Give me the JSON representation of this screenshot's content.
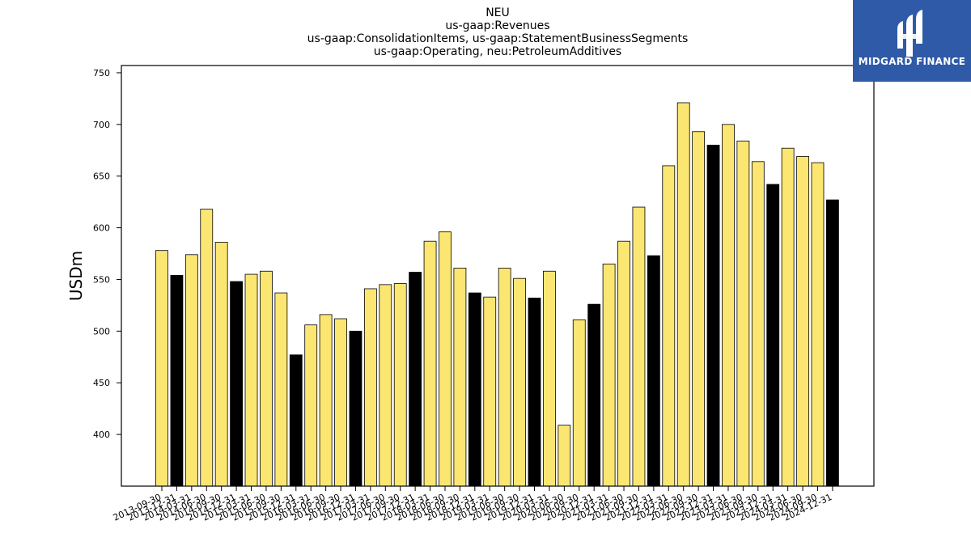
{
  "chart_data": {
    "type": "bar",
    "title_lines": [
      "NEU",
      "us-gaap:Revenues",
      "us-gaap:ConsolidationItems, us-gaap:StatementBusinessSegments",
      "us-gaap:Operating, neu:PetroleumAdditives"
    ],
    "ylabel": "USDm",
    "ylim": [
      350,
      757
    ],
    "yticks": [
      400,
      450,
      500,
      550,
      600,
      650,
      700,
      750
    ],
    "colors": {
      "quarter": "#fbe672",
      "year_end": "#000000",
      "edge": "#000000"
    },
    "categories": [
      "2013-09-30",
      "2013-12-31",
      "2014-03-31",
      "2014-06-30",
      "2014-09-30",
      "2014-12-31",
      "2015-03-31",
      "2015-06-30",
      "2015-09-30",
      "2015-12-31",
      "2016-03-31",
      "2016-06-30",
      "2016-09-30",
      "2016-12-31",
      "2017-03-31",
      "2017-06-30",
      "2017-09-30",
      "2017-12-31",
      "2018-03-31",
      "2018-06-30",
      "2018-09-30",
      "2018-12-31",
      "2019-03-31",
      "2019-06-30",
      "2019-09-30",
      "2019-12-31",
      "2020-03-31",
      "2020-06-30",
      "2020-09-30",
      "2020-12-31",
      "2021-03-31",
      "2021-06-30",
      "2021-09-30",
      "2021-12-31",
      "2022-03-31",
      "2022-06-30",
      "2022-09-30",
      "2022-12-31",
      "2023-03-31",
      "2023-06-30",
      "2023-09-30",
      "2023-12-31",
      "2024-03-31",
      "2024-06-30",
      "2024-09-30",
      "2024-12-31"
    ],
    "values": [
      578,
      554,
      574,
      618,
      586,
      548,
      555,
      558,
      537,
      477,
      506,
      516,
      512,
      500,
      541,
      545,
      546,
      557,
      587,
      596,
      561,
      537,
      533,
      561,
      551,
      532,
      558,
      409,
      511,
      526,
      565,
      587,
      620,
      573,
      660,
      721,
      693,
      680,
      700,
      684,
      664,
      642,
      677,
      669,
      663,
      627
    ],
    "legend": null,
    "grid": false
  },
  "logo": {
    "text": "MIDGARD FINANCE"
  }
}
